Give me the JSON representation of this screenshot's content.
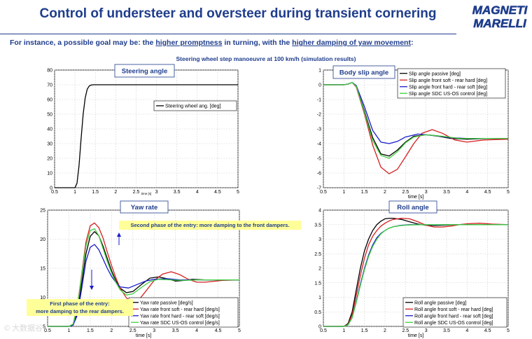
{
  "slide": {
    "title": "Control of understeer and oversteer during transient cornering",
    "subtitle_parts": [
      {
        "text": "For instance, a possible goal may be: the ",
        "underline": false
      },
      {
        "text": "higher promptness",
        "underline": true
      },
      {
        "text": " in turning, with the ",
        "underline": false
      },
      {
        "text": "higher damping of yaw movement",
        "underline": true
      },
      {
        "text": ":",
        "underline": false
      }
    ],
    "chart_caption": "Steering wheel step manoeuvre at 100 km/h (simulation results)",
    "logo_text": [
      "MAGNETI",
      "MARELLI"
    ],
    "watermark": "大数据谷",
    "accent_color": "#1f3d8c",
    "callout_color": "#ffff99"
  },
  "chart_data": [
    {
      "type": "line",
      "title": "Steering angle",
      "xlabel": "time [s]",
      "xlim": [
        0.5,
        5
      ],
      "ylim": [
        0,
        80
      ],
      "xticks": [
        0.5,
        1,
        1.5,
        2,
        2.5,
        3,
        3.5,
        4,
        4.5,
        5
      ],
      "yticks": [
        0,
        10,
        20,
        30,
        40,
        50,
        60,
        70,
        80
      ],
      "grid": true,
      "legend_position": "right",
      "series": [
        {
          "name": "Steering wheel ang. [deg]",
          "color": "#000000",
          "x": [
            0.5,
            1.0,
            1.05,
            1.1,
            1.15,
            1.2,
            1.25,
            1.3,
            1.35,
            1.4,
            1.45,
            1.5,
            5.0
          ],
          "y": [
            0,
            0,
            3,
            15,
            33,
            50,
            61,
            67,
            69.2,
            69.8,
            70,
            70,
            70
          ]
        }
      ]
    },
    {
      "type": "line",
      "title": "Body slip angle",
      "xlabel": "time [s]",
      "xlim": [
        0.5,
        5
      ],
      "ylim": [
        -7,
        1
      ],
      "xticks": [
        0.5,
        1,
        1.5,
        2,
        2.5,
        3,
        3.5,
        4,
        4.5,
        5
      ],
      "yticks": [
        1,
        0,
        -1,
        -2,
        -3,
        -4,
        -5,
        -6,
        -7
      ],
      "grid": true,
      "legend_position": "top-right",
      "series": [
        {
          "name": "Slip angle passive [deg]",
          "color": "#000000",
          "x": [
            0.5,
            1.0,
            1.1,
            1.2,
            1.3,
            1.5,
            1.7,
            1.9,
            2.1,
            2.3,
            2.5,
            2.7,
            3.0,
            3.3,
            3.6,
            4.0,
            4.5,
            5.0
          ],
          "y": [
            0,
            0,
            0.05,
            0.15,
            -0.1,
            -1.8,
            -3.6,
            -4.7,
            -4.85,
            -4.45,
            -3.9,
            -3.5,
            -3.4,
            -3.5,
            -3.65,
            -3.7,
            -3.65,
            -3.65
          ]
        },
        {
          "name": "Slip angle front soft - rear hard [deg]",
          "color": "#d42020",
          "x": [
            0.5,
            1.0,
            1.1,
            1.2,
            1.3,
            1.5,
            1.7,
            1.9,
            2.1,
            2.3,
            2.5,
            2.7,
            2.9,
            3.15,
            3.4,
            3.7,
            4.0,
            4.4,
            5.0
          ],
          "y": [
            0,
            0,
            0.05,
            0.15,
            -0.15,
            -2.0,
            -4.1,
            -5.6,
            -6.05,
            -5.75,
            -4.9,
            -4.0,
            -3.3,
            -3.05,
            -3.3,
            -3.75,
            -3.9,
            -3.75,
            -3.7
          ]
        },
        {
          "name": "Slip angle front hard - rear soft [deg]",
          "color": "#1a1acc",
          "x": [
            0.5,
            1.0,
            1.1,
            1.2,
            1.3,
            1.5,
            1.7,
            1.9,
            2.1,
            2.3,
            2.5,
            2.8,
            3.2,
            3.6,
            4.0,
            4.5,
            5.0
          ],
          "y": [
            0,
            0,
            0.05,
            0.15,
            -0.05,
            -1.5,
            -3.1,
            -3.9,
            -4.0,
            -3.85,
            -3.55,
            -3.35,
            -3.45,
            -3.6,
            -3.65,
            -3.65,
            -3.65
          ]
        },
        {
          "name": "Slip angle SDC US-OS control [deg]",
          "color": "#3fcf3f",
          "x": [
            0.5,
            1.0,
            1.1,
            1.2,
            1.3,
            1.5,
            1.7,
            1.9,
            2.1,
            2.3,
            2.5,
            2.7,
            3.0,
            3.4,
            3.8,
            4.2,
            5.0
          ],
          "y": [
            0,
            0,
            0.05,
            0.15,
            -0.1,
            -1.9,
            -3.8,
            -4.8,
            -5.0,
            -4.55,
            -3.95,
            -3.55,
            -3.4,
            -3.5,
            -3.65,
            -3.65,
            -3.65
          ]
        }
      ]
    },
    {
      "type": "line",
      "title": "Yaw rate",
      "xlabel": "time [s]",
      "xlim": [
        0.5,
        5
      ],
      "ylim": [
        5,
        25
      ],
      "xticks": [
        0.5,
        1,
        1.5,
        2,
        2.5,
        3,
        3.5,
        4,
        4.5,
        5
      ],
      "yticks": [
        5,
        10,
        15,
        20,
        25
      ],
      "grid": true,
      "legend_position": "bottom-right",
      "annotations": [
        {
          "text": "Second phase of the entry: more damping to the front dampers."
        },
        {
          "text": "First phase of the entry: more damping to the rear dampers."
        }
      ],
      "series": [
        {
          "name": "Yaw rate passive [deg/s]",
          "color": "#000000",
          "x": [
            0.5,
            1.0,
            1.1,
            1.2,
            1.3,
            1.4,
            1.5,
            1.6,
            1.7,
            1.8,
            1.9,
            2.0,
            2.1,
            2.2,
            2.35,
            2.5,
            2.7,
            2.9,
            3.1,
            3.3,
            3.5,
            3.7,
            3.9,
            4.2,
            4.6,
            5.0
          ],
          "y": [
            5,
            5,
            5.3,
            7.5,
            12.5,
            17.5,
            20.5,
            21.3,
            20.6,
            18.8,
            16.7,
            14.6,
            12.9,
            11.6,
            10.8,
            11.0,
            12.2,
            13.3,
            13.5,
            13.2,
            12.8,
            12.9,
            13.1,
            13.0,
            13.0,
            13.0
          ]
        },
        {
          "name": "Yaw rate front soft - rear hard [deg/s]",
          "color": "#d42020",
          "x": [
            0.5,
            1.0,
            1.1,
            1.2,
            1.3,
            1.4,
            1.5,
            1.6,
            1.7,
            1.8,
            1.9,
            2.0,
            2.1,
            2.2,
            2.35,
            2.5,
            2.6,
            2.8,
            3.0,
            3.2,
            3.4,
            3.6,
            3.8,
            4.0,
            4.2,
            4.6,
            5.0
          ],
          "y": [
            5,
            5,
            5.4,
            8.5,
            14.0,
            19.5,
            22.3,
            22.8,
            22.0,
            20.2,
            17.8,
            15.5,
            13.4,
            11.6,
            9.9,
            9.0,
            9.2,
            11.0,
            12.9,
            14.0,
            14.4,
            13.9,
            13.1,
            12.6,
            12.6,
            12.9,
            13.0
          ]
        },
        {
          "name": "Yaw rate front hard - rear soft [deg/s]",
          "color": "#1a1acc",
          "x": [
            0.5,
            1.0,
            1.1,
            1.2,
            1.3,
            1.4,
            1.5,
            1.6,
            1.7,
            1.8,
            1.9,
            2.0,
            2.1,
            2.2,
            2.4,
            2.6,
            2.8,
            3.0,
            3.3,
            3.6,
            4.0,
            4.5,
            5.0
          ],
          "y": [
            5,
            5,
            5.2,
            7.0,
            11.5,
            16.2,
            18.6,
            19.1,
            18.2,
            16.6,
            15.0,
            13.6,
            12.6,
            11.8,
            11.6,
            12.2,
            12.8,
            13.1,
            13.2,
            13.0,
            13.0,
            13.0,
            13.0
          ]
        },
        {
          "name": "Yaw rate SDC US-OS control [deg/s]",
          "color": "#3fcf3f",
          "x": [
            0.5,
            1.0,
            1.1,
            1.2,
            1.3,
            1.4,
            1.5,
            1.6,
            1.7,
            1.8,
            1.9,
            2.0,
            2.1,
            2.2,
            2.35,
            2.5,
            2.7,
            2.9,
            3.1,
            3.4,
            3.7,
            4.0,
            4.5,
            5.0
          ],
          "y": [
            5,
            5,
            5.4,
            8.2,
            13.8,
            18.8,
            21.5,
            21.8,
            20.6,
            18.4,
            16.2,
            14.2,
            12.6,
            11.3,
            10.4,
            10.6,
            11.7,
            12.7,
            13.1,
            13.0,
            12.9,
            13.0,
            13.0,
            13.0
          ]
        }
      ]
    },
    {
      "type": "line",
      "title": "Roll angle",
      "xlabel": "time [s]",
      "xlim": [
        0.5,
        5
      ],
      "ylim": [
        0,
        4
      ],
      "xticks": [
        0.5,
        1,
        1.5,
        2,
        2.5,
        3,
        3.5,
        4,
        4.5,
        5
      ],
      "yticks": [
        0,
        0.5,
        1,
        1.5,
        2,
        2.5,
        3,
        3.5,
        4
      ],
      "grid": true,
      "legend_position": "bottom-right",
      "series": [
        {
          "name": "Roll angle passive [deg]",
          "color": "#000000",
          "x": [
            0.5,
            1.0,
            1.1,
            1.2,
            1.3,
            1.4,
            1.5,
            1.6,
            1.7,
            1.8,
            1.9,
            2.0,
            2.1,
            2.2,
            2.4,
            2.6,
            2.8,
            3.0,
            3.2,
            3.4,
            3.7,
            4.0,
            4.5,
            5.0
          ],
          "y": [
            0,
            0,
            0.1,
            0.5,
            1.25,
            2.0,
            2.6,
            3.0,
            3.3,
            3.5,
            3.62,
            3.7,
            3.72,
            3.72,
            3.68,
            3.6,
            3.52,
            3.48,
            3.47,
            3.48,
            3.5,
            3.5,
            3.5,
            3.5
          ]
        },
        {
          "name": "Roll angle front soft - rear hard [deg]",
          "color": "#d42020",
          "x": [
            0.5,
            1.0,
            1.1,
            1.2,
            1.3,
            1.4,
            1.5,
            1.6,
            1.7,
            1.8,
            1.9,
            2.0,
            2.1,
            2.2,
            2.4,
            2.6,
            2.8,
            3.0,
            3.2,
            3.4,
            3.6,
            3.8,
            4.0,
            4.3,
            4.6,
            5.0
          ],
          "y": [
            0,
            0,
            0.07,
            0.4,
            1.05,
            1.75,
            2.35,
            2.8,
            3.1,
            3.3,
            3.45,
            3.55,
            3.63,
            3.68,
            3.72,
            3.7,
            3.6,
            3.48,
            3.42,
            3.42,
            3.45,
            3.5,
            3.53,
            3.55,
            3.52,
            3.5
          ]
        },
        {
          "name": "Roll angle front hard - rear soft [deg]",
          "color": "#1a1acc",
          "x": [
            0.5,
            1.0,
            1.1,
            1.2,
            1.3,
            1.4,
            1.5,
            1.6,
            1.7,
            1.8,
            1.9,
            2.0,
            2.1,
            2.2,
            2.4,
            2.6,
            2.9,
            3.2,
            3.6,
            4.0,
            4.5,
            5.0
          ],
          "y": [
            0,
            0,
            0.05,
            0.3,
            0.85,
            1.45,
            2.0,
            2.45,
            2.8,
            3.05,
            3.2,
            3.3,
            3.38,
            3.43,
            3.48,
            3.5,
            3.5,
            3.49,
            3.5,
            3.5,
            3.5,
            3.5
          ]
        },
        {
          "name": "Roll angle SDC US-OS control [deg]",
          "color": "#3fcf3f",
          "x": [
            0.5,
            1.0,
            1.1,
            1.2,
            1.3,
            1.4,
            1.5,
            1.6,
            1.7,
            1.8,
            1.9,
            2.0,
            2.1,
            2.2,
            2.4,
            2.6,
            2.9,
            3.2,
            3.6,
            4.0,
            4.5,
            5.0
          ],
          "y": [
            0,
            0,
            0.05,
            0.3,
            0.82,
            1.4,
            1.95,
            2.4,
            2.75,
            3.0,
            3.18,
            3.3,
            3.38,
            3.43,
            3.47,
            3.49,
            3.5,
            3.5,
            3.5,
            3.5,
            3.5,
            3.5
          ]
        }
      ]
    }
  ]
}
